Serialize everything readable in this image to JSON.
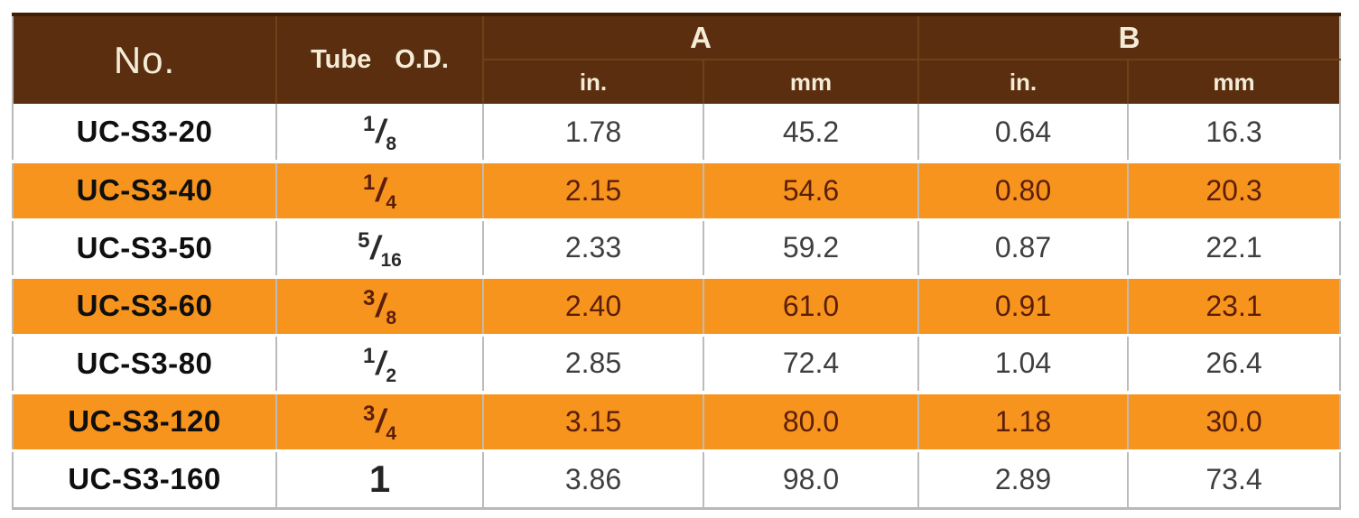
{
  "table": {
    "headers": {
      "no": "No.",
      "tube_od": "Tube O.D.",
      "group_a": "A",
      "group_b": "B",
      "unit_in": "in.",
      "unit_mm": "mm"
    },
    "rows": [
      {
        "no": "UC-S3-20",
        "tube_od": {
          "num": "1",
          "den": "8"
        },
        "a_in": "1.78",
        "a_mm": "45.2",
        "b_in": "0.64",
        "b_mm": "16.3",
        "highlighted": false
      },
      {
        "no": "UC-S3-40",
        "tube_od": {
          "num": "1",
          "den": "4"
        },
        "a_in": "2.15",
        "a_mm": "54.6",
        "b_in": "0.80",
        "b_mm": "20.3",
        "highlighted": true
      },
      {
        "no": "UC-S3-50",
        "tube_od": {
          "num": "5",
          "den": "16"
        },
        "a_in": "2.33",
        "a_mm": "59.2",
        "b_in": "0.87",
        "b_mm": "22.1",
        "highlighted": false
      },
      {
        "no": "UC-S3-60",
        "tube_od": {
          "num": "3",
          "den": "8"
        },
        "a_in": "2.40",
        "a_mm": "61.0",
        "b_in": "0.91",
        "b_mm": "23.1",
        "highlighted": true
      },
      {
        "no": "UC-S3-80",
        "tube_od": {
          "num": "1",
          "den": "2"
        },
        "a_in": "2.85",
        "a_mm": "72.4",
        "b_in": "1.04",
        "b_mm": "26.4",
        "highlighted": false
      },
      {
        "no": "UC-S3-120",
        "tube_od": {
          "num": "3",
          "den": "4"
        },
        "a_in": "3.15",
        "a_mm": "80.0",
        "b_in": "1.18",
        "b_mm": "30.0",
        "highlighted": true
      },
      {
        "no": "UC-S3-160",
        "tube_od": {
          "whole": "1"
        },
        "a_in": "3.86",
        "a_mm": "98.0",
        "b_in": "2.89",
        "b_mm": "73.4",
        "highlighted": false
      }
    ]
  },
  "colors": {
    "header_bg": "#5A2E0F",
    "header_text": "#F5ECD8",
    "highlight_bg": "#F7941E",
    "highlight_text": "#5B1E08",
    "body_text": "#3F3F3F",
    "no_text": "#0F0F0F"
  }
}
